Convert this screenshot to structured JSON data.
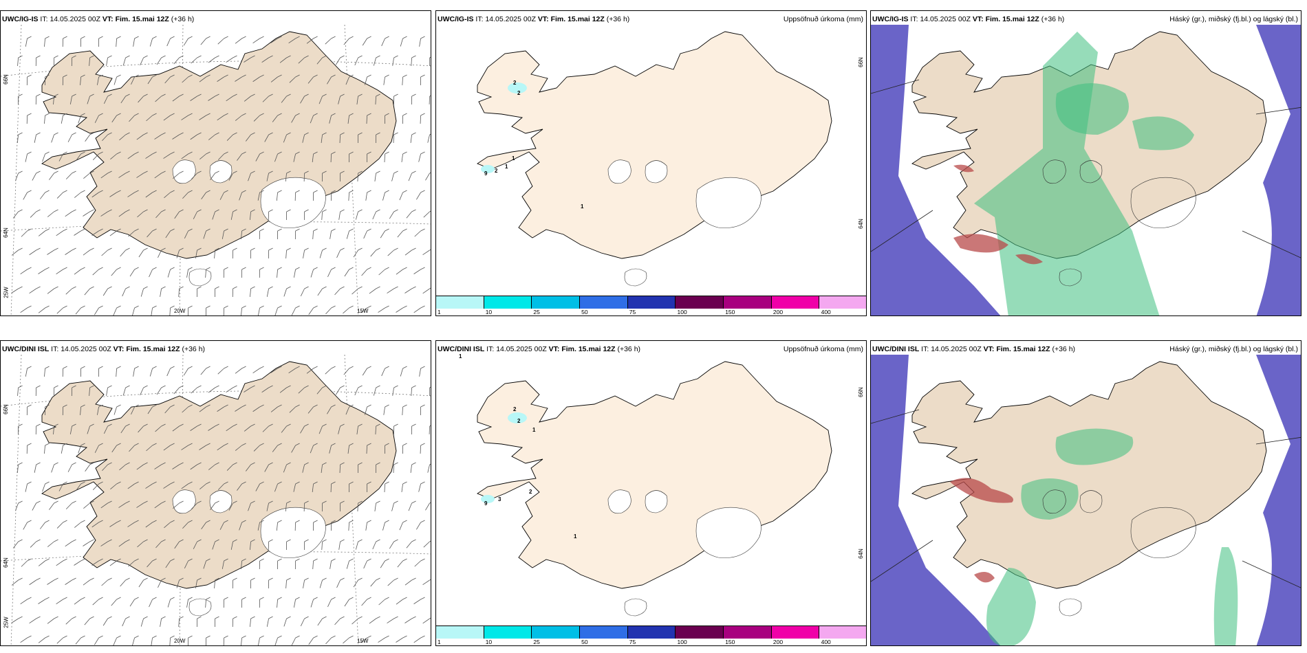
{
  "panels": [
    {
      "model": "UWC/IG-IS",
      "it_label": "IT:",
      "it": "14.05.2025 00Z",
      "vt_label": "VT:",
      "vt": "Fim. 15.mai 12Z",
      "lead": "(+36 h)",
      "right": "",
      "type": "wind"
    },
    {
      "model": "UWC/IG-IS",
      "it_label": "IT:",
      "it": "14.05.2025 00Z",
      "vt_label": "VT:",
      "vt": "Fim. 15.mai 12Z",
      "lead": "(+36 h)",
      "right": "Uppsöfnuð úrkoma (mm)",
      "type": "precip"
    },
    {
      "model": "UWC/IG-IS",
      "it_label": "IT:",
      "it": "14.05.2025 00Z",
      "vt_label": "VT:",
      "vt": "Fim. 15.mai 12Z",
      "lead": "(+36 h)",
      "right": "Háský (gr.), miðský (fj.bl.) og lágský (bl.)",
      "type": "cloud"
    },
    {
      "model": "UWC/DINI ISL",
      "it_label": "IT:",
      "it": "14.05.2025 00Z",
      "vt_label": "VT:",
      "vt": "Fim. 15.mai 12Z",
      "lead": "(+36 h)",
      "right": "",
      "type": "wind"
    },
    {
      "model": "UWC/DINI ISL",
      "it_label": "IT:",
      "it": "14.05.2025 00Z",
      "vt_label": "VT:",
      "vt": "Fim. 15.mai 12Z",
      "lead": "(+36 h)",
      "right": "Uppsöfnuð úrkoma (mm)",
      "type": "precip"
    },
    {
      "model": "UWC/DINI ISL",
      "it_label": "IT:",
      "it": "14.05.2025 00Z",
      "vt_label": "VT:",
      "vt": "Fim. 15.mai 12Z",
      "lead": "(+36 h)",
      "right": "Háský (gr.), miðský (fj.bl.) og lágský (bl.)",
      "type": "cloud"
    }
  ],
  "coords": {
    "lat66": "66N",
    "lat64": "64N",
    "lon25": "25W",
    "lon20": "20W",
    "lon15": "15W"
  },
  "colorbar": {
    "labels": [
      "1",
      "10",
      "25",
      "50",
      "75",
      "100",
      "150",
      "200",
      "400"
    ],
    "colors": [
      "#b8f7f7",
      "#00e8e8",
      "#00bfe6",
      "#2f6ee6",
      "#2233b0",
      "#6a0050",
      "#a8007f",
      "#f000a8",
      "#f4a8f0"
    ]
  },
  "precip_numbers_top": [
    "2",
    "2",
    "9",
    "2",
    "1",
    "1",
    "1"
  ],
  "precip_numbers_bottom": [
    "1",
    "2",
    "2",
    "1",
    "9",
    "3",
    "2",
    "1"
  ],
  "colors": {
    "land": "#ecdcc8",
    "land_precip": "#fcefe0",
    "ocean_cloud": "#6a64c8",
    "cloud_green": "#3fbf7f",
    "cloud_red": "#b84a4a"
  }
}
